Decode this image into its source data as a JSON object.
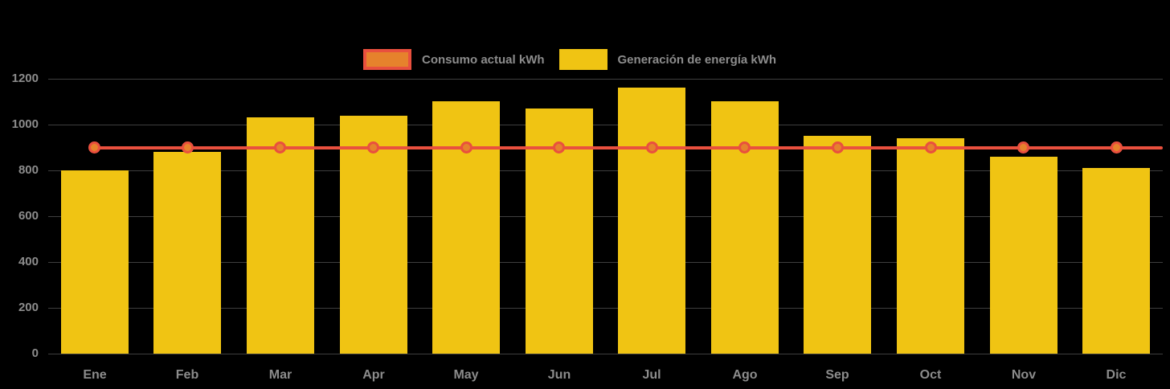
{
  "chart_data": {
    "type": "bar",
    "title": "",
    "categories": [
      "Ene",
      "Feb",
      "Mar",
      "Apr",
      "May",
      "Jun",
      "Jul",
      "Ago",
      "Sep",
      "Oct",
      "Nov",
      "Dic"
    ],
    "series": [
      {
        "name": "Consumo actual kWh",
        "type": "line",
        "color": "#e9503e",
        "marker_fill": "#e6822c",
        "values": [
          900,
          900,
          900,
          900,
          900,
          900,
          900,
          900,
          900,
          900,
          900,
          900
        ]
      },
      {
        "name": "Generación de energía kWh",
        "type": "bar",
        "color": "#f0c413",
        "values": [
          800,
          880,
          1030,
          1040,
          1100,
          1070,
          1160,
          1100,
          950,
          940,
          860,
          810
        ]
      }
    ],
    "xlabel": "",
    "ylabel": "",
    "ylim": [
      0,
      1200
    ],
    "yticks": [
      0,
      200,
      400,
      600,
      800,
      1000,
      1200
    ],
    "grid": true,
    "legend_position": "top-center",
    "background_color": "#000000",
    "text_color": "#8c8c8c",
    "gridline_color": "#3f3f3f"
  }
}
